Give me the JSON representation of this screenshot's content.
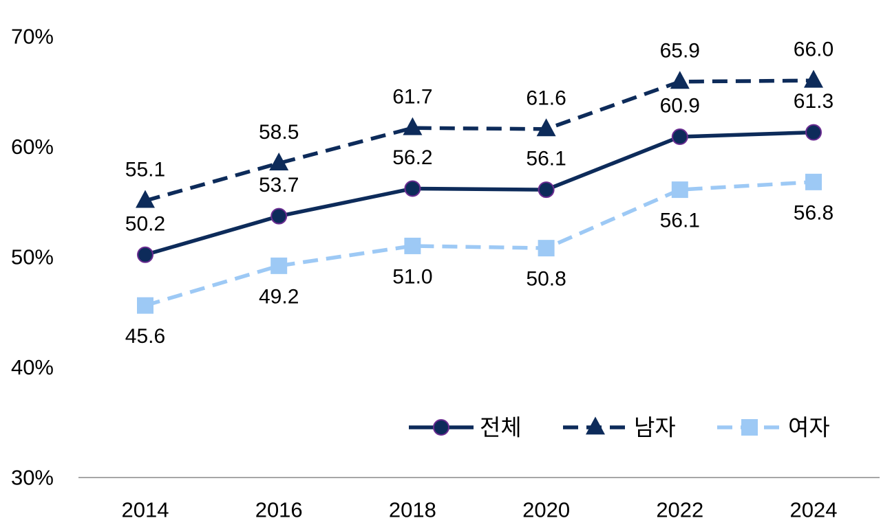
{
  "chart_data": {
    "type": "line",
    "categories": [
      "2014",
      "2016",
      "2018",
      "2020",
      "2022",
      "2024"
    ],
    "ylim": [
      30,
      70
    ],
    "yticks": [
      "30%",
      "40%",
      "50%",
      "60%",
      "70%"
    ],
    "yticks_values": [
      30,
      40,
      50,
      60,
      70
    ],
    "grid": false,
    "legend_position": "bottom-right",
    "series": [
      {
        "name": "전체",
        "values": [
          50.2,
          53.7,
          56.2,
          56.1,
          60.9,
          61.3
        ],
        "labels": [
          "50.2",
          "53.7",
          "56.2",
          "56.1",
          "60.9",
          "61.3"
        ],
        "color": "#0d2b5a",
        "marker": "circle",
        "marker_edge": "#6a2c91",
        "line": "solid",
        "label_position": "above"
      },
      {
        "name": "남자",
        "values": [
          55.1,
          58.5,
          61.7,
          61.6,
          65.9,
          66.0
        ],
        "labels": [
          "55.1",
          "58.5",
          "61.7",
          "61.6",
          "65.9",
          "66.0"
        ],
        "color": "#0d2b5a",
        "marker": "triangle",
        "line": "dashed",
        "label_position": "above"
      },
      {
        "name": "여자",
        "values": [
          45.6,
          49.2,
          51.0,
          50.8,
          56.1,
          56.8
        ],
        "labels": [
          "45.6",
          "49.2",
          "51.0",
          "50.8",
          "56.1",
          "56.8"
        ],
        "color": "#9dc9f5",
        "marker": "square",
        "line": "dashed",
        "label_position": "below"
      }
    ]
  }
}
